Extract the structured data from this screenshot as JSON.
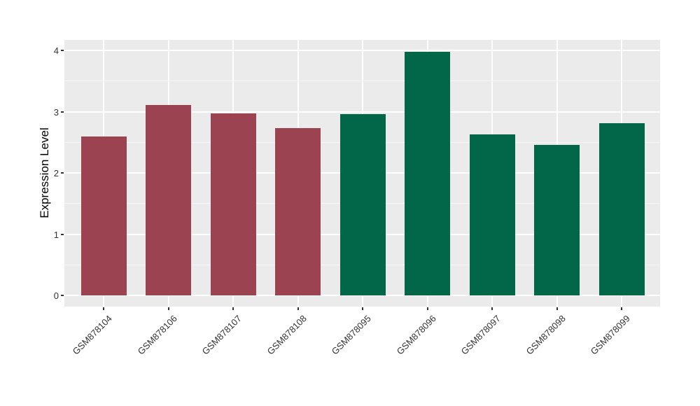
{
  "figure": {
    "background": "#FFFFFF"
  },
  "panel": {
    "background": "#EBEBEB",
    "gridline_color": "#FFFFFF"
  },
  "axes": {
    "y_title": "Expression Level",
    "y_tick_labels": [
      "0",
      "1",
      "2",
      "3",
      "4"
    ]
  },
  "chart_data": {
    "type": "bar",
    "title": "",
    "xlabel": "",
    "ylabel": "Expression Level",
    "categories": [
      "GSM878104",
      "GSM878106",
      "GSM878107",
      "GSM878108",
      "GSM878095",
      "GSM878096",
      "GSM878097",
      "GSM878098",
      "GSM878099"
    ],
    "values": [
      2.6,
      3.11,
      2.97,
      2.73,
      2.96,
      3.98,
      2.63,
      2.46,
      2.81
    ],
    "groups": [
      "group1",
      "group1",
      "group1",
      "group1",
      "group2",
      "group2",
      "group2",
      "group2",
      "group2"
    ],
    "group_colors": {
      "group1": "#9C4351",
      "group2": "#016748"
    },
    "y_ticks": [
      0,
      1,
      2,
      3,
      4
    ],
    "y_minor_ticks": [
      0.5,
      1.5,
      2.5,
      3.5
    ],
    "ylim": [
      -0.19,
      4.17
    ],
    "grid": "on",
    "legend_position": "none",
    "panel_background": "#EBEBEB",
    "gridline_color": "#FFFFFF",
    "tick_label_color": "#333333"
  }
}
